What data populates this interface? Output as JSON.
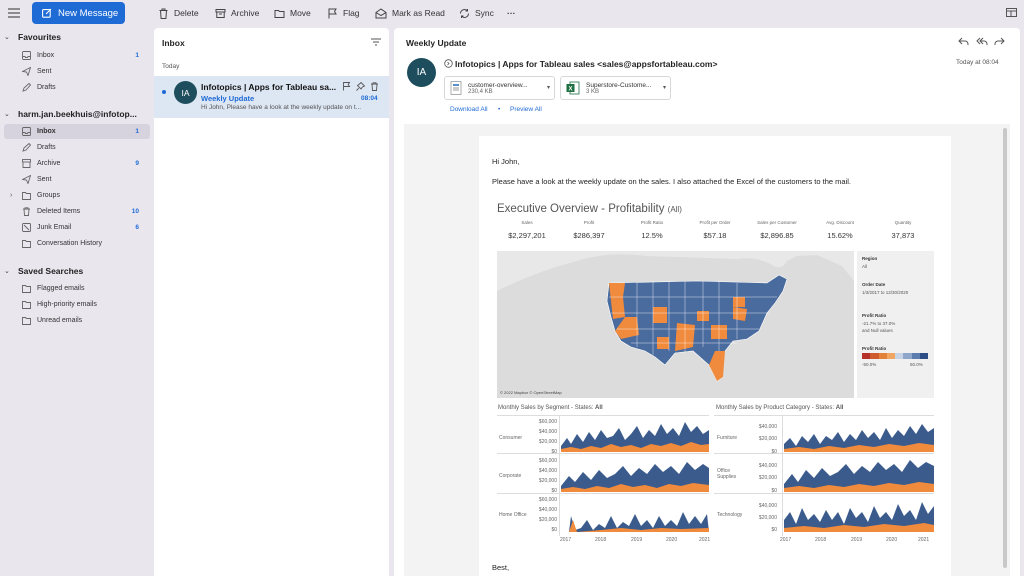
{
  "toolbar": {
    "new_message": "New Message",
    "delete": "Delete",
    "archive": "Archive",
    "move": "Move",
    "flag": "Flag",
    "mark_as_read": "Mark as Read",
    "sync": "Sync",
    "more": "···"
  },
  "sidebar": {
    "favourites": {
      "title": "Favourites",
      "items": [
        {
          "label": "Inbox",
          "count": "1"
        },
        {
          "label": "Sent",
          "count": ""
        },
        {
          "label": "Drafts",
          "count": ""
        }
      ]
    },
    "account": {
      "title": "harm.jan.beekhuis@infotop...",
      "items": [
        {
          "label": "Inbox",
          "count": "1"
        },
        {
          "label": "Drafts",
          "count": ""
        },
        {
          "label": "Archive",
          "count": "9"
        },
        {
          "label": "Sent",
          "count": ""
        },
        {
          "label": "Groups",
          "count": ""
        },
        {
          "label": "Deleted Items",
          "count": "10"
        },
        {
          "label": "Junk Email",
          "count": "6"
        },
        {
          "label": "Conversation History",
          "count": ""
        }
      ]
    },
    "saved_searches": {
      "title": "Saved Searches",
      "items": [
        {
          "label": "Flagged emails"
        },
        {
          "label": "High-priority emails"
        },
        {
          "label": "Unread emails"
        }
      ]
    }
  },
  "list": {
    "title": "Inbox",
    "group": "Today",
    "message": {
      "avatar": "IA",
      "sender": "Infotopics | Apps for Tableau sa...",
      "subject": "Weekly Update",
      "time": "08:04",
      "preview": "Hi John, Please have a look at the weekly update on t..."
    }
  },
  "reading": {
    "subject": "Weekly Update",
    "avatar": "IA",
    "from": "Infotopics | Apps for Tableau sales <sales@appsfortableau.com>",
    "date": "Today at 08:04",
    "attachments": [
      {
        "name": "customer-overview...",
        "size": "230,4 KB"
      },
      {
        "name": "Superstore-Custome...",
        "size": "3 KB"
      }
    ],
    "download_all": "Download All",
    "separator": "•",
    "preview_all": "Preview All",
    "greeting": "Hi John,",
    "body": "Please have a look at the weekly update on the sales. I also attached the Excel of the customers to the mail.",
    "signoff": "Best,"
  },
  "dashboard": {
    "title": "Executive Overview - Profitability",
    "title_suffix": "(All)",
    "kpis": [
      {
        "label": "Sales",
        "value": "$2,297,201"
      },
      {
        "label": "Profit",
        "value": "$286,397"
      },
      {
        "label": "Profit Ratio",
        "value": "12.5%"
      },
      {
        "label": "Profit per Order",
        "value": "$57.18"
      },
      {
        "label": "Sales per Customer",
        "value": "$2,896.85"
      },
      {
        "label": "Avg. Discount",
        "value": "15.62%"
      },
      {
        "label": "Quantity",
        "value": "37,873"
      }
    ],
    "filters": {
      "region_label": "Region",
      "region_value": "All",
      "order_date_label": "Order Date",
      "order_date_value": "1/3/2017 to 12/30/2020",
      "profit_ratio_label": "Profit Ratio",
      "profit_ratio_value": "-21.7% to 37.0%",
      "profit_ratio_value2": "and Null values",
      "legend_label": "Profit Ratio",
      "legend_min": "-50.0%",
      "legend_max": "50.0%"
    },
    "map_credit": "© 2022 Mapbox © OpenStreetMap",
    "colors": {
      "blue": "#4a6b9e",
      "orange": "#f08a3c",
      "dark_red": "#b5312a"
    },
    "segment_chart": {
      "title": "Monthly Sales by Segment - States: ",
      "title_bold": "All",
      "rows": [
        "Consumer",
        "Corporate",
        "Home Office"
      ],
      "yticks": [
        "$60,000",
        "$40,000",
        "$20,000",
        "$0"
      ]
    },
    "category_chart": {
      "title": "Monthly Sales by Product Category - States: ",
      "title_bold": "All",
      "rows": [
        "Furniture",
        "Office Supplies",
        "Technology"
      ],
      "yticks": [
        "$40,000",
        "$20,000",
        "$0"
      ]
    },
    "years": [
      "2017",
      "2018",
      "2019",
      "2020",
      "2021"
    ]
  }
}
